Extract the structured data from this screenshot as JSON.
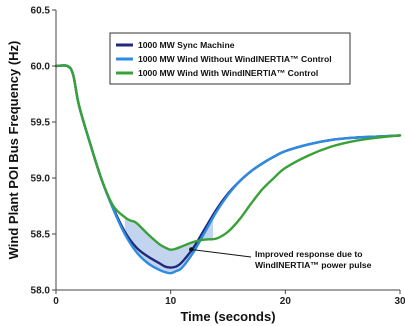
{
  "chart_data": {
    "type": "line",
    "title": "",
    "xlabel": "Time (seconds)",
    "ylabel": "Wind Plant POI Bus Frequency (Hz)",
    "xlim": [
      0,
      30
    ],
    "ylim": [
      58.0,
      60.5
    ],
    "x_ticks": [
      "0",
      "10",
      "20",
      "30"
    ],
    "y_ticks": [
      "58.0",
      "58.5",
      "59.0",
      "59.5",
      "60.0",
      "60.5"
    ],
    "grid": false,
    "legend_position": "top-right",
    "series": [
      {
        "name": "1000 MW Sync Machine",
        "color": "#1f2a7a",
        "x": [
          0,
          1,
          1.5,
          2,
          3,
          4,
          5,
          6,
          7,
          8,
          9,
          9.5,
          10,
          10.5,
          11,
          12,
          13,
          14,
          15,
          16,
          17,
          18,
          19,
          20,
          22,
          24,
          26,
          28,
          30
        ],
        "y": [
          60.0,
          60.0,
          59.92,
          59.65,
          59.3,
          58.98,
          58.73,
          58.52,
          58.38,
          58.3,
          58.24,
          58.21,
          58.2,
          58.21,
          58.25,
          58.38,
          58.55,
          58.72,
          58.86,
          58.97,
          59.06,
          59.13,
          59.19,
          59.24,
          59.3,
          59.34,
          59.36,
          59.37,
          59.38
        ]
      },
      {
        "name": "1000 MW Wind Without WindINERTIA™ Control",
        "color": "#2d8be0",
        "x": [
          0,
          1,
          1.5,
          2,
          3,
          4,
          5,
          6,
          7,
          8,
          9,
          9.5,
          10,
          10.5,
          11,
          12,
          13,
          14,
          15,
          16,
          17,
          18,
          19,
          20,
          22,
          24,
          26,
          28,
          30
        ],
        "y": [
          60.0,
          60.0,
          59.92,
          59.65,
          59.3,
          58.98,
          58.72,
          58.5,
          58.34,
          58.24,
          58.18,
          58.16,
          58.15,
          58.17,
          58.2,
          58.34,
          58.52,
          58.7,
          58.85,
          58.97,
          59.06,
          59.13,
          59.19,
          59.24,
          59.3,
          59.34,
          59.36,
          59.37,
          59.38
        ]
      },
      {
        "name": "1000 MW Wind With WindINERTIA™ Control",
        "color": "#3aa038",
        "x": [
          0,
          1,
          1.5,
          2,
          3,
          4,
          5,
          6,
          6.5,
          7,
          8,
          9,
          9.5,
          10,
          10.5,
          11,
          12,
          13,
          14,
          15,
          16,
          17,
          18,
          19,
          20,
          22,
          24,
          26,
          28,
          30
        ],
        "y": [
          60.0,
          60.0,
          59.92,
          59.65,
          59.3,
          58.98,
          58.75,
          58.65,
          58.62,
          58.6,
          58.5,
          58.41,
          58.38,
          58.36,
          58.37,
          58.39,
          58.43,
          58.45,
          58.46,
          58.52,
          58.63,
          58.77,
          58.9,
          59.0,
          59.09,
          59.2,
          59.28,
          59.33,
          59.36,
          59.38
        ]
      }
    ],
    "annotation": {
      "text_line1": "Improved response due to",
      "text_line2": "WindINERTIA™ power pulse",
      "fill_color": "#b8cdec"
    }
  }
}
